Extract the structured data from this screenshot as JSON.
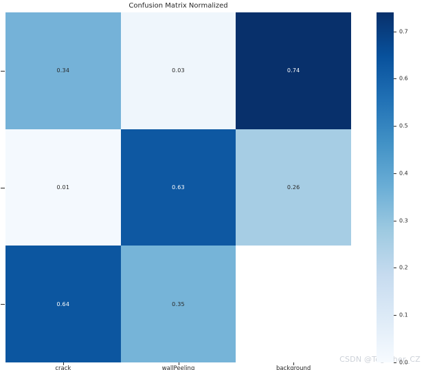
{
  "chart_data": {
    "type": "heatmap",
    "title": "Confusion Matrix Normalized",
    "x_categories": [
      "crack",
      "wallPeeling",
      "background"
    ],
    "values": [
      [
        0.34,
        0.03,
        0.74
      ],
      [
        0.01,
        0.63,
        0.26
      ],
      [
        0.64,
        0.35,
        null
      ]
    ],
    "cell_labels": [
      [
        "0.34",
        "0.03",
        "0.74"
      ],
      [
        "0.01",
        "0.63",
        "0.26"
      ],
      [
        "0.64",
        "0.35",
        ""
      ]
    ],
    "cell_colors": [
      [
        "#75b2d8",
        "#eff6fc",
        "#08306b"
      ],
      [
        "#f4f9fe",
        "#0e58a2",
        "#a6cde4"
      ],
      [
        "#0c56a0",
        "#76b4d8",
        "#ffffff"
      ]
    ],
    "cell_text_colors": [
      [
        "#262626",
        "#262626",
        "#ffffff"
      ],
      [
        "#262626",
        "#ffffff",
        "#262626"
      ],
      [
        "#ffffff",
        "#262626",
        "#262626"
      ]
    ],
    "colormap": "Blues",
    "vmin": 0.0,
    "vmax": 0.74,
    "colorbar_ticks": [
      {
        "value": 0.7,
        "label": "0.7"
      },
      {
        "value": 0.6,
        "label": "0.6"
      },
      {
        "value": 0.5,
        "label": "0.5"
      },
      {
        "value": 0.4,
        "label": "0.4"
      },
      {
        "value": 0.3,
        "label": "0.3"
      },
      {
        "value": 0.2,
        "label": "0.2"
      },
      {
        "value": 0.1,
        "label": "0.1"
      },
      {
        "value": 0.0,
        "label": "0.0"
      }
    ],
    "colorbar_gradient_top_to_bottom": [
      "#08306b",
      "#08519c",
      "#2171b5",
      "#4292c6",
      "#6baed6",
      "#9ecae1",
      "#c6dbef",
      "#deebf7",
      "#f7fbff"
    ],
    "legend_position": "right",
    "grid": false
  },
  "watermark": {
    "text": "CSDN @Together_CZ",
    "color": "#ccd1d8"
  },
  "colors": {
    "background": "#ffffff",
    "tick": "#262626",
    "title_text": "#262626"
  }
}
